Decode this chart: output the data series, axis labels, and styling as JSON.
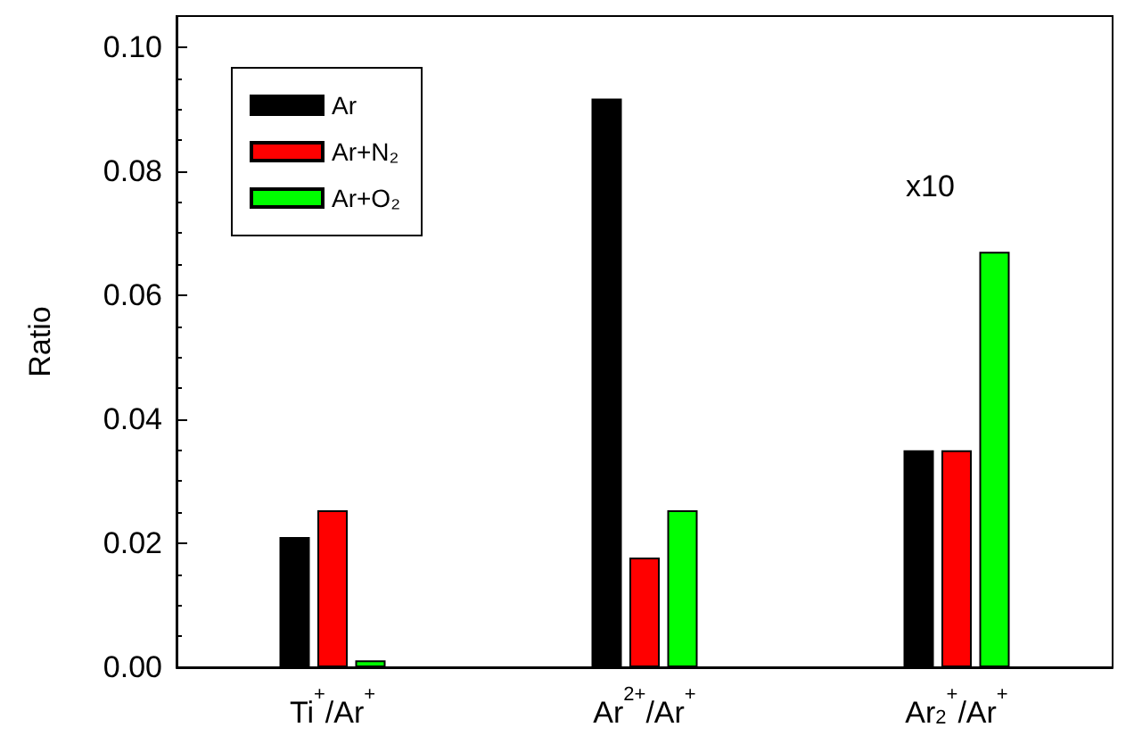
{
  "chart_data": {
    "type": "bar",
    "ylabel": "Ratio",
    "categories": [
      "Ti$^{+}$/Ar$^{+}$",
      "Ar$^{2+}$/Ar$^{+}$",
      "Ar$_{2}$$^{+}$/Ar$^{+}$"
    ],
    "series": [
      {
        "name": "Ar",
        "color": "#000000",
        "values": [
          0.021,
          0.0917,
          0.035
        ]
      },
      {
        "name": "Ar+N₂",
        "color": "#ff0000",
        "values": [
          0.0253,
          0.0177,
          0.035
        ]
      },
      {
        "name": "Ar+O₂",
        "color": "#00ff00",
        "values": [
          0.0011,
          0.0253,
          0.067
        ]
      }
    ],
    "ylim": [
      0,
      0.105
    ],
    "yticks": [
      {
        "value": 0,
        "label": "0.00"
      },
      {
        "value": 0.02,
        "label": "0.02"
      },
      {
        "value": 0.04,
        "label": "0.04"
      },
      {
        "value": 0.06,
        "label": "0.06"
      },
      {
        "value": 0.08,
        "label": "0.08"
      },
      {
        "value": 0.1,
        "label": "0.10"
      }
    ],
    "annotations": [
      "x10"
    ],
    "legend": "top left",
    "grid": false
  }
}
